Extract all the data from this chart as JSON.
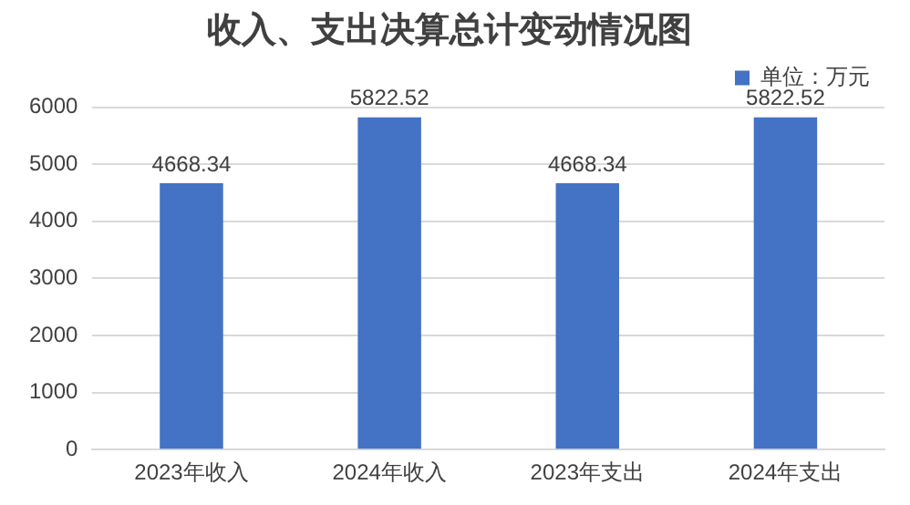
{
  "chart_data": {
    "type": "bar",
    "title": "收入、支出决算总计变动情况图",
    "categories": [
      "2023年收入",
      "2024年收入",
      "2023年支出",
      "2024年支出"
    ],
    "series": [
      {
        "name": "单位：万元",
        "color": "#4472c4",
        "values": [
          4668.34,
          5822.52,
          4668.34,
          5822.52
        ]
      }
    ],
    "ylim": [
      0,
      6000
    ],
    "yticks": [
      0,
      1000,
      2000,
      3000,
      4000,
      5000,
      6000
    ],
    "grid": "y",
    "legend": "top right",
    "data_labels": true
  }
}
